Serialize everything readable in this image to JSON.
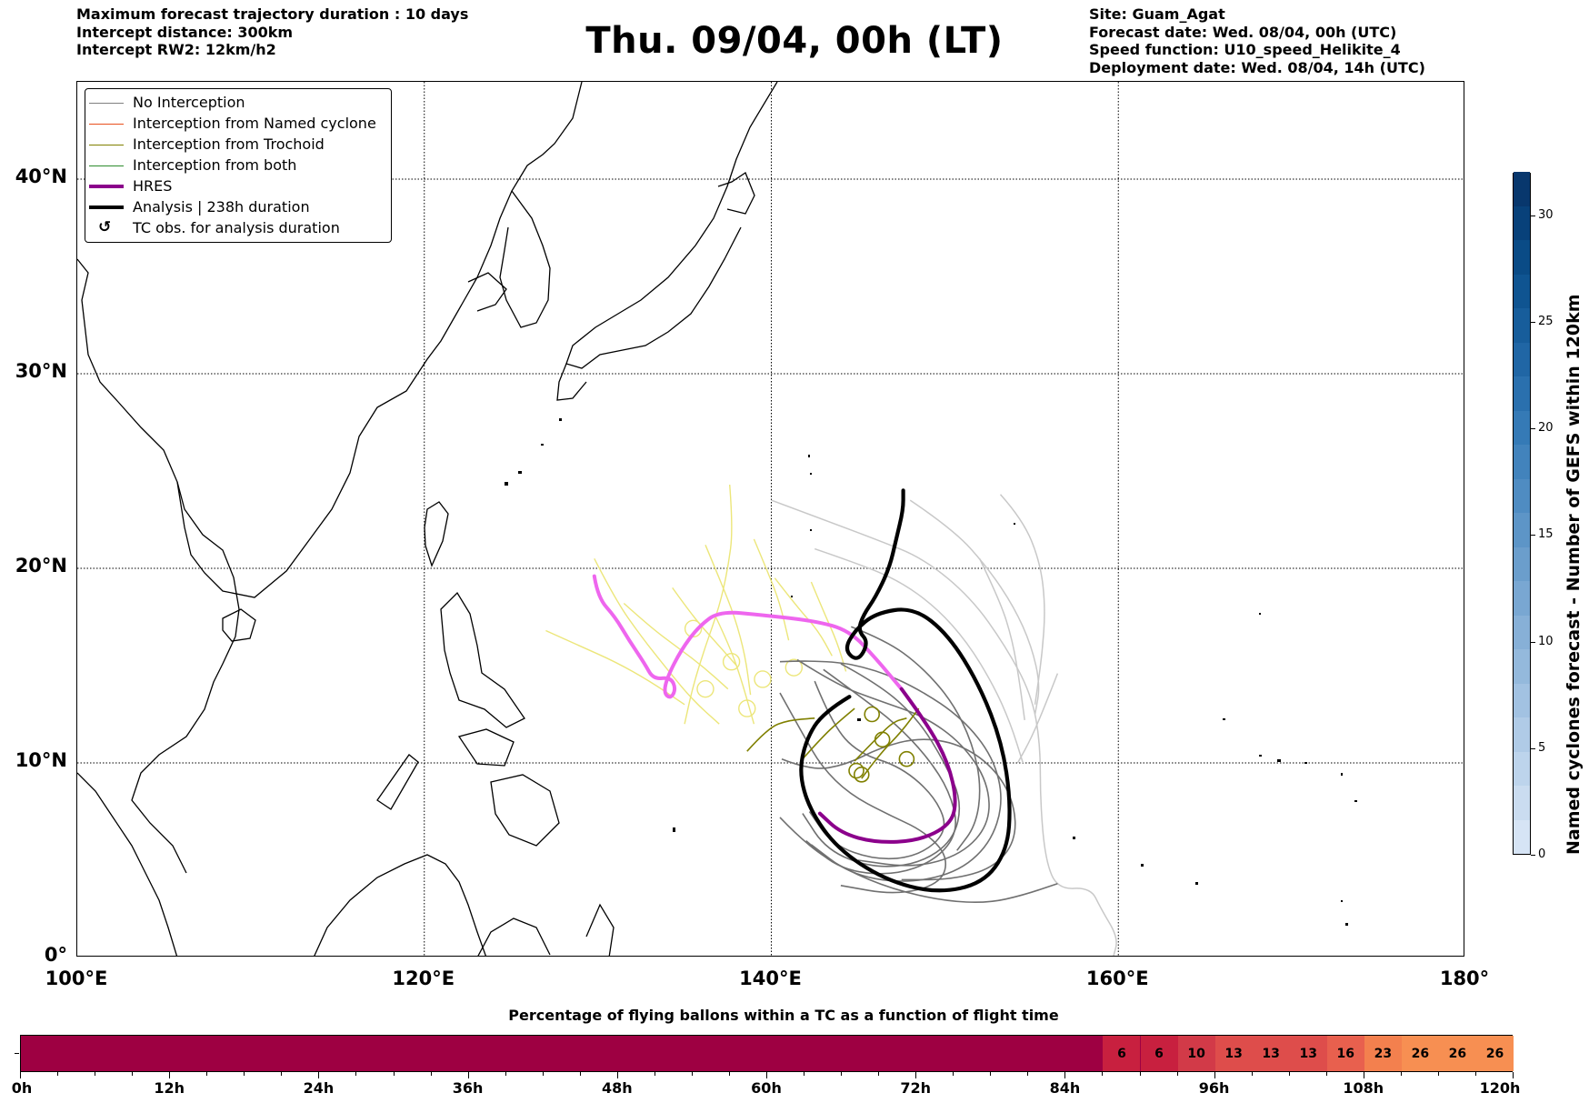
{
  "header": {
    "left": [
      "Maximum forecast trajectory duration : 10 days",
      "Intercept distance: 300km",
      "Intercept RW2: 12km/h2"
    ],
    "title": "Thu. 09/04, 00h (LT)",
    "right": [
      "Site: Guam_Agat",
      "Forecast date: Wed. 08/04, 00h (UTC)",
      "Speed function: U10_speed_Helikite_4",
      "Deployment date: Wed. 08/04, 14h (UTC)"
    ]
  },
  "map": {
    "lon_range": [
      100,
      180
    ],
    "lat_range": [
      0,
      45
    ],
    "grid": "dotted",
    "lon_ticks": [
      {
        "value": 100,
        "label": "100°E"
      },
      {
        "value": 120,
        "label": "120°E"
      },
      {
        "value": 140,
        "label": "140°E"
      },
      {
        "value": 160,
        "label": "160°E"
      },
      {
        "value": 180,
        "label": "180°"
      }
    ],
    "lat_ticks": [
      {
        "value": 0,
        "label": "0°"
      },
      {
        "value": 10,
        "label": "10°N"
      },
      {
        "value": 20,
        "label": "20°N"
      },
      {
        "value": 30,
        "label": "30°N"
      },
      {
        "value": 40,
        "label": "40°N"
      }
    ]
  },
  "legend": {
    "placement": "top-left",
    "items": [
      {
        "label": "No Interception",
        "color": "#808080",
        "style": "thin"
      },
      {
        "label": "Interception from Named cyclone",
        "color": "#e8501e",
        "style": "thin"
      },
      {
        "label": "Interception from Trochoid",
        "color": "#808000",
        "style": "thin"
      },
      {
        "label": "Interception from both",
        "color": "#2e8b2e",
        "style": "thin"
      },
      {
        "label": "HRES",
        "color": "#8b008b",
        "style": "thick"
      },
      {
        "label": "Analysis | 238h duration",
        "color": "#000000",
        "style": "thick"
      },
      {
        "label": "TC obs. for analysis duration",
        "color": "#000000",
        "style": "marker",
        "marker": "↺"
      }
    ]
  },
  "trajectories": {
    "analysis": [
      [
        144.5,
        13.4
      ],
      [
        143,
        12.6
      ],
      [
        142,
        11.2
      ],
      [
        141.6,
        9.5
      ],
      [
        142.2,
        7.6
      ],
      [
        143.8,
        5.6
      ],
      [
        146.5,
        4
      ],
      [
        149.5,
        3.3
      ],
      [
        152.2,
        3.8
      ],
      [
        153.6,
        5.5
      ],
      [
        153.8,
        8
      ],
      [
        153.3,
        11
      ],
      [
        152,
        14
      ],
      [
        150.2,
        16.6
      ],
      [
        148.2,
        18
      ],
      [
        146,
        17.7
      ],
      [
        144.8,
        16.8
      ],
      [
        144.2,
        15.8
      ],
      [
        145,
        15.2
      ],
      [
        145.6,
        16.2
      ],
      [
        145,
        16.8
      ],
      [
        145.3,
        17.6
      ],
      [
        146,
        18.5
      ],
      [
        146.8,
        20
      ],
      [
        147.2,
        21.5
      ],
      [
        147.6,
        23
      ],
      [
        147.6,
        24
      ]
    ],
    "hres": [
      [
        129.8,
        19.6
      ],
      [
        130,
        18.5
      ],
      [
        131,
        17.5
      ],
      [
        131.8,
        16.3
      ],
      [
        132.7,
        15.1
      ],
      [
        133.2,
        14.3
      ],
      [
        134.2,
        14.4
      ],
      [
        134.5,
        13.8
      ],
      [
        134.2,
        13.3
      ],
      [
        133.8,
        13.6
      ],
      [
        134,
        14.4
      ],
      [
        134.8,
        15.8
      ],
      [
        135.8,
        17
      ],
      [
        137,
        17.8
      ],
      [
        139.5,
        17.6
      ],
      [
        142.5,
        17.3
      ],
      [
        144.5,
        16.8
      ],
      [
        146,
        15.4
      ],
      [
        147.5,
        13.8
      ],
      [
        149,
        12
      ],
      [
        150.2,
        10
      ],
      [
        150.7,
        8
      ],
      [
        150.3,
        6.8
      ],
      [
        148.5,
        6
      ],
      [
        146,
        5.9
      ],
      [
        144,
        6.4
      ],
      [
        142.8,
        7.4
      ]
    ],
    "trochoid": [
      [
        [
          141.8,
          10.2
        ],
        [
          143,
          11.4
        ],
        [
          144,
          12.2
        ],
        [
          144.8,
          12.8
        ]
      ],
      [
        [
          145.2,
          9.2
        ],
        [
          146.2,
          10.4
        ],
        [
          147.5,
          11.6
        ],
        [
          148.5,
          12.8
        ]
      ],
      [
        [
          138.6,
          10.6
        ],
        [
          139.8,
          11.8
        ],
        [
          141,
          12.2
        ],
        [
          142.5,
          12.3
        ]
      ],
      [
        [
          144.8,
          10.1
        ],
        [
          146,
          11.2
        ],
        [
          147,
          12.1
        ],
        [
          147.8,
          12.3
        ]
      ]
    ],
    "yellow": [
      [
        [
          137.6,
          24.3
        ],
        [
          137.8,
          22
        ],
        [
          137.5,
          20
        ],
        [
          137,
          18
        ],
        [
          136.2,
          16
        ],
        [
          135.5,
          14
        ],
        [
          135,
          12
        ]
      ],
      [
        [
          129.8,
          20.5
        ],
        [
          131,
          18.4
        ],
        [
          132.5,
          16.5
        ],
        [
          134,
          14.8
        ],
        [
          135.5,
          13.2
        ],
        [
          137,
          12
        ]
      ],
      [
        [
          127,
          16.8
        ],
        [
          129,
          16
        ],
        [
          131,
          15.2
        ],
        [
          133,
          14.2
        ],
        [
          135,
          13
        ]
      ],
      [
        [
          136.2,
          21.2
        ],
        [
          137,
          19.5
        ],
        [
          137.9,
          17.5
        ],
        [
          138.5,
          15.5
        ],
        [
          138.8,
          13.5
        ]
      ],
      [
        [
          139,
          21.5
        ],
        [
          139.8,
          19.8
        ],
        [
          140.5,
          18.2
        ],
        [
          141,
          16.3
        ]
      ],
      [
        [
          134.3,
          19
        ],
        [
          135.5,
          17.5
        ],
        [
          136.8,
          16.2
        ],
        [
          138,
          15
        ]
      ],
      [
        [
          131.5,
          18.2
        ],
        [
          133,
          17
        ],
        [
          134.5,
          16
        ],
        [
          136,
          15
        ],
        [
          137.5,
          13.8
        ]
      ],
      [
        [
          140.2,
          19.5
        ],
        [
          141.5,
          18
        ],
        [
          142.7,
          16.8
        ],
        [
          143.5,
          15.5
        ]
      ],
      [
        [
          136.8,
          17.5
        ],
        [
          137.6,
          16
        ],
        [
          138.3,
          14.2
        ],
        [
          139,
          12
        ]
      ],
      [
        [
          142.3,
          19.3
        ],
        [
          143,
          17.8
        ],
        [
          143.8,
          16.2
        ],
        [
          144.3,
          14.7
        ]
      ]
    ],
    "gray_dark": [
      [
        [
          142.5,
          14.2
        ],
        [
          143.5,
          12
        ],
        [
          145,
          10.5
        ],
        [
          147.5,
          9.8
        ],
        [
          149.5,
          8.2
        ],
        [
          150.2,
          6.5
        ],
        [
          148.5,
          5.2
        ],
        [
          146,
          5
        ],
        [
          143.5,
          5.8
        ],
        [
          142.2,
          7.5
        ]
      ],
      [
        [
          144,
          15.1
        ],
        [
          146.3,
          14
        ],
        [
          148.5,
          12.2
        ],
        [
          150,
          10
        ],
        [
          151,
          8
        ],
        [
          150.5,
          6
        ],
        [
          148.5,
          4.8
        ],
        [
          145.8,
          4.6
        ],
        [
          143.2,
          5.5
        ],
        [
          141.8,
          7.4
        ]
      ],
      [
        [
          143,
          14.8
        ],
        [
          145,
          13.5
        ],
        [
          147.2,
          12
        ],
        [
          149,
          10.3
        ],
        [
          150.3,
          8.5
        ],
        [
          150.8,
          6.5
        ],
        [
          149.5,
          5
        ],
        [
          147,
          4.2
        ],
        [
          144,
          4.5
        ],
        [
          142,
          6
        ]
      ],
      [
        [
          140.5,
          13.6
        ],
        [
          141.8,
          11.5
        ],
        [
          142.9,
          9.8
        ],
        [
          144.5,
          8.4
        ],
        [
          146.6,
          7.4
        ],
        [
          148.8,
          6.5
        ],
        [
          150.2,
          5.2
        ],
        [
          149.8,
          3.8
        ],
        [
          147.2,
          3.2
        ],
        [
          144,
          3.7
        ]
      ],
      [
        [
          141.5,
          15.3
        ],
        [
          143.8,
          14
        ],
        [
          146.2,
          13.2
        ],
        [
          148.8,
          12.4
        ],
        [
          151,
          11
        ],
        [
          152.5,
          9
        ],
        [
          152.6,
          6.9
        ],
        [
          151,
          5.3
        ],
        [
          148.2,
          4.6
        ],
        [
          145,
          5
        ]
      ],
      [
        [
          140.5,
          15.2
        ],
        [
          143.2,
          15.3
        ],
        [
          146,
          14.8
        ],
        [
          148.5,
          13.8
        ],
        [
          151,
          12.3
        ],
        [
          152.8,
          10.3
        ],
        [
          153.4,
          8
        ],
        [
          152.6,
          5.8
        ],
        [
          150.6,
          4.3
        ],
        [
          147.5,
          3.8
        ],
        [
          144.5,
          4.3
        ],
        [
          142.3,
          5.8
        ]
      ],
      [
        [
          140.6,
          10.2
        ],
        [
          142.3,
          9.6
        ],
        [
          144.3,
          9.9
        ],
        [
          146.3,
          10.8
        ],
        [
          148.5,
          11.3
        ],
        [
          150.8,
          11
        ],
        [
          152.8,
          9.8
        ],
        [
          154,
          8
        ],
        [
          154.1,
          6
        ],
        [
          152.8,
          4.6
        ],
        [
          150.4,
          4
        ],
        [
          147.5,
          4
        ]
      ],
      [
        [
          140.5,
          7.2
        ],
        [
          142,
          5.8
        ],
        [
          144.3,
          4.5
        ],
        [
          147,
          3.5
        ],
        [
          150,
          2.9
        ],
        [
          152.5,
          2.8
        ],
        [
          154.5,
          3.2
        ],
        [
          156.5,
          3.8
        ]
      ],
      [
        [
          144.6,
          17
        ],
        [
          146.6,
          16.3
        ],
        [
          148.6,
          15
        ],
        [
          150.4,
          13.2
        ],
        [
          151.6,
          11
        ],
        [
          152.1,
          8.8
        ],
        [
          151.8,
          6.8
        ],
        [
          150.7,
          5.5
        ]
      ]
    ],
    "gray_light": [
      [
        [
          140,
          23.5
        ],
        [
          143,
          22.5
        ],
        [
          146,
          21.5
        ],
        [
          148.8,
          20.5
        ],
        [
          151.5,
          18.5
        ],
        [
          153.5,
          16
        ],
        [
          155,
          13.5
        ],
        [
          155.5,
          11
        ],
        [
          155.5,
          8
        ],
        [
          155.8,
          5
        ],
        [
          156.5,
          3.5
        ],
        [
          158.4,
          3.6
        ],
        [
          159,
          2.5
        ],
        [
          160,
          1
        ],
        [
          159.7,
          0
        ]
      ],
      [
        [
          142.5,
          21
        ],
        [
          144.8,
          20.3
        ],
        [
          147.3,
          19.4
        ],
        [
          149.5,
          18
        ],
        [
          151.3,
          16.2
        ],
        [
          152.8,
          14
        ],
        [
          153.8,
          12
        ],
        [
          154.5,
          10
        ]
      ],
      [
        [
          148,
          23.5
        ],
        [
          150.5,
          22
        ],
        [
          152.5,
          20
        ],
        [
          154,
          18
        ],
        [
          155,
          16
        ],
        [
          155.5,
          14
        ],
        [
          155.2,
          12.5
        ]
      ],
      [
        [
          153.2,
          23.8
        ],
        [
          154.5,
          22.5
        ],
        [
          155.5,
          20.3
        ],
        [
          155.8,
          18
        ],
        [
          155.6,
          15.5
        ],
        [
          155.2,
          13
        ]
      ],
      [
        [
          152,
          20.5
        ],
        [
          153.2,
          18.3
        ],
        [
          153.9,
          16.3
        ],
        [
          154.3,
          14.2
        ],
        [
          154.6,
          12.2
        ]
      ],
      [
        [
          156.5,
          14.6
        ],
        [
          155.8,
          13
        ],
        [
          155,
          11.3
        ],
        [
          154.2,
          10
        ]
      ]
    ]
  },
  "colorbar": {
    "label": "Named cyclones forecast - Number of GEFS within 120km",
    "min": 0,
    "max": 32,
    "ticks": [
      0,
      5,
      10,
      15,
      20,
      25,
      30
    ],
    "colors": [
      "#d6e4f5",
      "#cadcf0",
      "#bdd4ec",
      "#b0cbe7",
      "#a2c2e2",
      "#94b9dc",
      "#87b0d7",
      "#79a7d2",
      "#6b9ecc",
      "#5d95c7",
      "#4f8cc2",
      "#4283bc",
      "#357ab6",
      "#2a70ae",
      "#2066a5",
      "#175d9b",
      "#0f5491",
      "#0a4b86",
      "#08417a",
      "#08376d"
    ]
  },
  "timeline": {
    "title": "Percentage of flying ballons within a TC as a function of flight time",
    "max_hours": 120,
    "tick_labels": [
      {
        "h": 0,
        "label": "0h"
      },
      {
        "h": 12,
        "label": "12h"
      },
      {
        "h": 24,
        "label": "24h"
      },
      {
        "h": 36,
        "label": "36h"
      },
      {
        "h": 48,
        "label": "48h"
      },
      {
        "h": 60,
        "label": "60h"
      },
      {
        "h": 72,
        "label": "72h"
      },
      {
        "h": 84,
        "label": "84h"
      },
      {
        "h": 96,
        "label": "96h"
      },
      {
        "h": 108,
        "label": "108h"
      },
      {
        "h": 120,
        "label": "120h"
      }
    ],
    "base_color": "#9e0042",
    "cells": [
      {
        "start": 87,
        "end": 90,
        "value": "6",
        "color": "#c8203f"
      },
      {
        "start": 90,
        "end": 93,
        "value": "6",
        "color": "#c8203f"
      },
      {
        "start": 93,
        "end": 96,
        "value": "10",
        "color": "#d23a48"
      },
      {
        "start": 96,
        "end": 99,
        "value": "13",
        "color": "#de4d4b"
      },
      {
        "start": 99,
        "end": 102,
        "value": "13",
        "color": "#de4d4b"
      },
      {
        "start": 102,
        "end": 105,
        "value": "13",
        "color": "#de4d4b"
      },
      {
        "start": 105,
        "end": 108,
        "value": "16",
        "color": "#e8604e"
      },
      {
        "start": 108,
        "end": 111,
        "value": "23",
        "color": "#f3804e"
      },
      {
        "start": 111,
        "end": 114,
        "value": "26",
        "color": "#f78f52"
      },
      {
        "start": 114,
        "end": 117,
        "value": "26",
        "color": "#f78f52"
      },
      {
        "start": 117,
        "end": 120,
        "value": "26",
        "color": "#f78f52"
      }
    ]
  }
}
